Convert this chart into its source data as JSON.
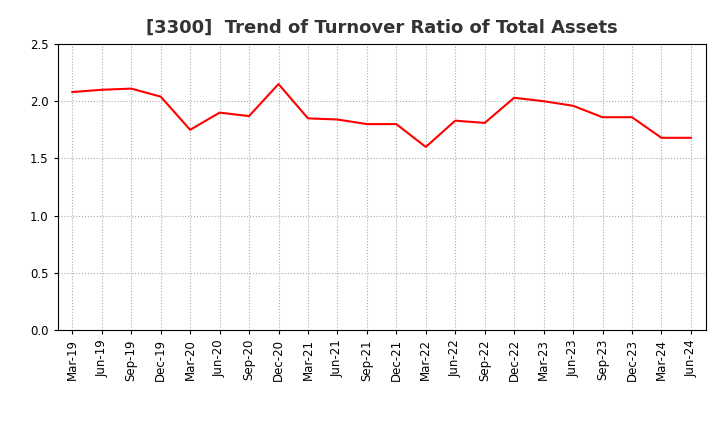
{
  "title": "[3300]  Trend of Turnover Ratio of Total Assets",
  "x_labels": [
    "Mar-19",
    "Jun-19",
    "Sep-19",
    "Dec-19",
    "Mar-20",
    "Jun-20",
    "Sep-20",
    "Dec-20",
    "Mar-21",
    "Jun-21",
    "Sep-21",
    "Dec-21",
    "Mar-22",
    "Jun-22",
    "Sep-22",
    "Dec-22",
    "Mar-23",
    "Jun-23",
    "Sep-23",
    "Dec-23",
    "Mar-24",
    "Jun-24"
  ],
  "values": [
    2.08,
    2.1,
    2.11,
    2.04,
    1.75,
    1.9,
    1.87,
    2.15,
    1.85,
    1.84,
    1.8,
    1.8,
    1.6,
    1.83,
    1.81,
    2.03,
    2.0,
    1.96,
    1.86,
    1.86,
    1.68,
    1.68
  ],
  "line_color": "#FF0000",
  "line_width": 1.5,
  "ylim": [
    0.0,
    2.5
  ],
  "yticks": [
    0.0,
    0.5,
    1.0,
    1.5,
    2.0,
    2.5
  ],
  "background_color": "#ffffff",
  "grid_color": "#aaaaaa",
  "title_fontsize": 13,
  "tick_fontsize": 8.5,
  "title_color": "#333333"
}
